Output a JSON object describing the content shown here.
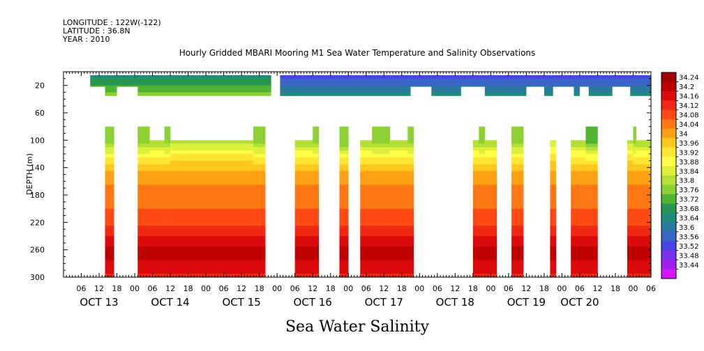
{
  "header": {
    "longitude": "LONGITUDE : 122W(-122)",
    "latitude": "LATITUDE : 36.8N",
    "year": "YEAR : 2010"
  },
  "chart_data": {
    "type": "heatmap",
    "title": "Hourly Gridded MBARI Mooring M1 Sea Water Temperature and Salinity Observations",
    "ylabel": "DEPTH (m)",
    "variable_label": "Sea Water Salinity",
    "y_axis": {
      "range": [
        0,
        300
      ],
      "inverted": true,
      "ticks": [
        20,
        60,
        100,
        140,
        180,
        220,
        260,
        300
      ]
    },
    "x_axis": {
      "range_hours": [
        0,
        198
      ],
      "hour_ticks": [
        {
          "h": 6,
          "label": "06"
        },
        {
          "h": 12,
          "label": "12"
        },
        {
          "h": 18,
          "label": "18"
        },
        {
          "h": 24,
          "label": "00"
        },
        {
          "h": 30,
          "label": "06"
        },
        {
          "h": 36,
          "label": "12"
        },
        {
          "h": 42,
          "label": "18"
        },
        {
          "h": 48,
          "label": "00"
        },
        {
          "h": 54,
          "label": "06"
        },
        {
          "h": 60,
          "label": "12"
        },
        {
          "h": 66,
          "label": "18"
        },
        {
          "h": 72,
          "label": "00"
        },
        {
          "h": 78,
          "label": "06"
        },
        {
          "h": 84,
          "label": "12"
        },
        {
          "h": 90,
          "label": "18"
        },
        {
          "h": 96,
          "label": "00"
        },
        {
          "h": 102,
          "label": "06"
        },
        {
          "h": 108,
          "label": "12"
        },
        {
          "h": 114,
          "label": "18"
        },
        {
          "h": 120,
          "label": "00"
        },
        {
          "h": 126,
          "label": "06"
        },
        {
          "h": 132,
          "label": "12"
        },
        {
          "h": 138,
          "label": "18"
        },
        {
          "h": 144,
          "label": "00"
        },
        {
          "h": 150,
          "label": "06"
        },
        {
          "h": 156,
          "label": "12"
        },
        {
          "h": 162,
          "label": "18"
        },
        {
          "h": 168,
          "label": "00"
        },
        {
          "h": 174,
          "label": "06"
        },
        {
          "h": 180,
          "label": "12"
        },
        {
          "h": 186,
          "label": "18"
        },
        {
          "h": 192,
          "label": "00"
        },
        {
          "h": 198,
          "label": "06"
        }
      ],
      "day_labels": [
        {
          "h": 12,
          "label": "OCT 13"
        },
        {
          "h": 36,
          "label": "OCT 14"
        },
        {
          "h": 60,
          "label": "OCT 15"
        },
        {
          "h": 84,
          "label": "OCT 16"
        },
        {
          "h": 108,
          "label": "OCT 17"
        },
        {
          "h": 132,
          "label": "OCT 18"
        },
        {
          "h": 156,
          "label": "OCT 19"
        },
        {
          "h": 174,
          "label": "OCT 20"
        }
      ]
    },
    "colorbar": {
      "levels": [
        34.24,
        34.2,
        34.16,
        34.12,
        34.08,
        34.04,
        34,
        33.96,
        33.92,
        33.88,
        33.84,
        33.8,
        33.76,
        33.72,
        33.68,
        33.64,
        33.6,
        33.56,
        33.52,
        33.48,
        33.44
      ],
      "labels": [
        "34.24",
        "34.2",
        "34.16",
        "34.12",
        "34.08",
        "34.04",
        "34",
        "33.96",
        "33.92",
        "33.88",
        "33.84",
        "33.8",
        "33.76",
        "33.72",
        "33.68",
        "33.64",
        "33.6",
        "33.56",
        "33.52",
        "33.48",
        "33.44"
      ],
      "colors": [
        "#a00000",
        "#be0000",
        "#dc0a0a",
        "#f02814",
        "#ff4a14",
        "#ff7814",
        "#ffa014",
        "#ffc81e",
        "#ffe632",
        "#ffff46",
        "#dcf03c",
        "#b4e036",
        "#8cd032",
        "#50b432",
        "#289650",
        "#1e8c78",
        "#2878a0",
        "#3c64c8",
        "#4646e6",
        "#7832f0",
        "#a01ef0",
        "#d214ff"
      ]
    },
    "shallow_depth_range": [
      5,
      35
    ],
    "deep_depth_range": [
      80,
      300
    ],
    "shallow_segments": [
      {
        "t": [
          9,
          70
        ],
        "value": 33.66
      },
      {
        "t": [
          73,
          198
        ],
        "value": 33.55
      }
    ],
    "shallow_gaps": [
      [
        9,
        14
      ],
      [
        18,
        25
      ],
      [
        117,
        124
      ],
      [
        134,
        142
      ],
      [
        156,
        162
      ],
      [
        165,
        172
      ],
      [
        174,
        177
      ],
      [
        185,
        191
      ]
    ],
    "deep_segments": [
      {
        "t": [
          14,
          17
        ],
        "top": 80,
        "surface": 33.78
      },
      {
        "t": [
          25,
          29
        ],
        "top": 80,
        "surface": 33.78
      },
      {
        "t": [
          29,
          34
        ],
        "top": 100,
        "surface": 33.8
      },
      {
        "t": [
          34,
          36
        ],
        "top": 80,
        "surface": 33.78
      },
      {
        "t": [
          36,
          64
        ],
        "top": 100,
        "surface": 33.82
      },
      {
        "t": [
          64,
          68
        ],
        "top": 80,
        "surface": 33.78
      },
      {
        "t": [
          78,
          84
        ],
        "top": 100,
        "surface": 33.8
      },
      {
        "t": [
          84,
          86
        ],
        "top": 80,
        "surface": 33.78
      },
      {
        "t": [
          93,
          96
        ],
        "top": 80,
        "surface": 33.76
      },
      {
        "t": [
          100,
          104
        ],
        "top": 100,
        "surface": 33.8
      },
      {
        "t": [
          104,
          110
        ],
        "top": 80,
        "surface": 33.78
      },
      {
        "t": [
          110,
          116
        ],
        "top": 100,
        "surface": 33.8
      },
      {
        "t": [
          116,
          118
        ],
        "top": 80,
        "surface": 33.78
      },
      {
        "t": [
          138,
          140
        ],
        "top": 100,
        "surface": 33.8
      },
      {
        "t": [
          140,
          142
        ],
        "top": 80,
        "surface": 33.78
      },
      {
        "t": [
          142,
          146
        ],
        "top": 100,
        "surface": 33.8
      },
      {
        "t": [
          151,
          155
        ],
        "top": 80,
        "surface": 33.78
      },
      {
        "t": [
          164,
          166
        ],
        "top": 100,
        "surface": 33.84
      },
      {
        "t": [
          171,
          176
        ],
        "top": 100,
        "surface": 33.8
      },
      {
        "t": [
          176,
          180
        ],
        "top": 80,
        "surface": 33.74
      },
      {
        "t": [
          190,
          192
        ],
        "top": 100,
        "surface": 33.82
      },
      {
        "t": [
          192,
          193
        ],
        "top": 80,
        "surface": 33.78
      },
      {
        "t": [
          193,
          198
        ],
        "top": 100,
        "surface": 33.8
      }
    ],
    "depth_profile": [
      {
        "z": 100,
        "v": 33.8
      },
      {
        "z": 125,
        "v": 33.94
      },
      {
        "z": 150,
        "v": 34.03
      },
      {
        "z": 185,
        "v": 34.06
      },
      {
        "z": 215,
        "v": 34.1
      },
      {
        "z": 240,
        "v": 34.16
      },
      {
        "z": 255,
        "v": 34.21
      },
      {
        "z": 270,
        "v": 34.2
      },
      {
        "z": 300,
        "v": 34.14
      }
    ]
  }
}
